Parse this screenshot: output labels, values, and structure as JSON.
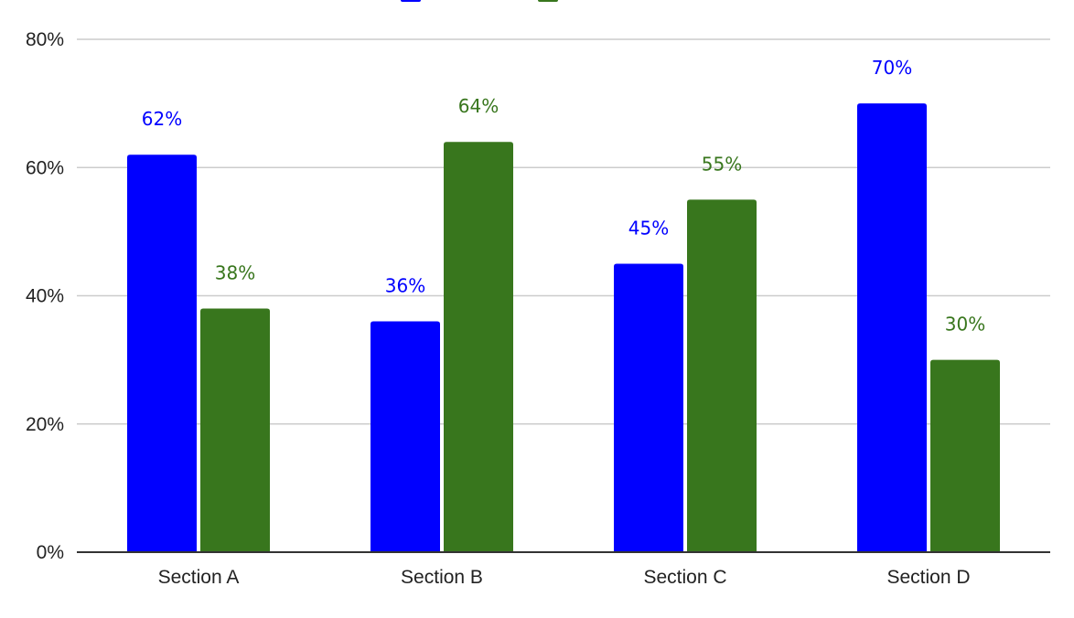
{
  "chart_data": {
    "type": "bar",
    "title": "",
    "xlabel": "",
    "ylabel": "",
    "categories": [
      "Section A",
      "Section B",
      "Section C",
      "Section D"
    ],
    "series": [
      {
        "values": [
          62,
          36,
          45,
          70
        ],
        "color": "#0000ff"
      },
      {
        "values": [
          38,
          64,
          55,
          30
        ],
        "color": "#38761d"
      }
    ],
    "ylim": [
      0,
      80
    ],
    "yticks": [
      0,
      20,
      40,
      60,
      80
    ],
    "ytick_labels": [
      "0%",
      "20%",
      "40%",
      "60%",
      "80%"
    ],
    "data_labels": [
      [
        "62%",
        "36%",
        "45%",
        "70%"
      ],
      [
        "38%",
        "64%",
        "55%",
        "30%"
      ]
    ],
    "grid": true,
    "legend": "top-center"
  }
}
